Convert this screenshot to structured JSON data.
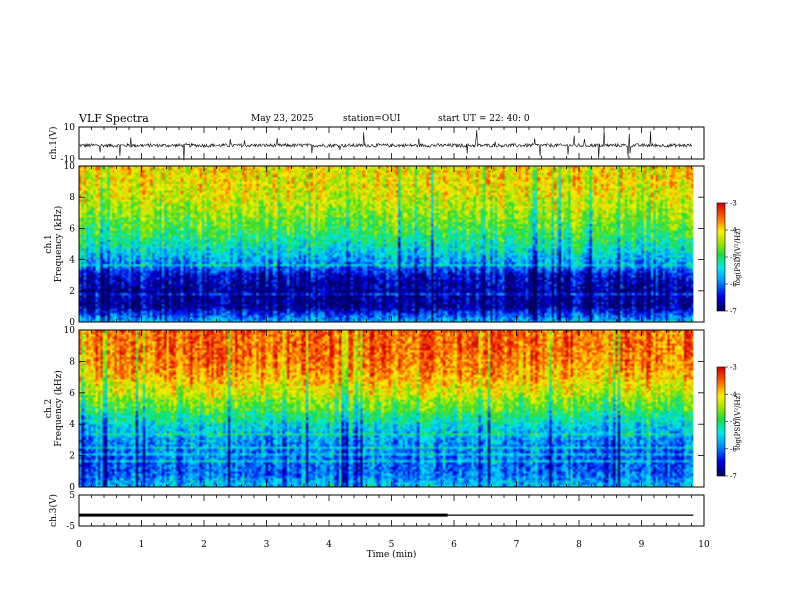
{
  "header": {
    "title": "VLF Spectra",
    "date": "May 23, 2025",
    "station": "station=OUI",
    "start": "start UT =   22: 40: 0"
  },
  "chart_data": [
    {
      "type": "line",
      "panel": "ch1-waveform",
      "ylabel": "ch.1(V)",
      "ylim": [
        -10,
        10
      ],
      "yticks": [
        "10",
        "-10"
      ],
      "xlim": [
        0,
        10
      ],
      "baseline_v": -1.5,
      "color": "#000000"
    },
    {
      "type": "heatmap",
      "panel": "ch1-spectrogram",
      "ylabel": "ch.1\nFrequency (kHz)",
      "ylim": [
        0,
        10
      ],
      "yticks": [
        "0",
        "2",
        "4",
        "6",
        "8",
        "10"
      ],
      "xlim": [
        0,
        9.83
      ],
      "colorbar": {
        "label": "log(PSD)(V²/Hz)",
        "range": [
          -7,
          -3
        ],
        "ticks": [
          "-3",
          "-4",
          "-5",
          "-6",
          "-7"
        ]
      },
      "profile_khz": [
        0,
        1,
        2,
        3,
        3.5,
        4,
        5,
        6,
        7,
        8,
        9,
        10
      ],
      "profile_level": [
        0.35,
        0.05,
        0.06,
        0.12,
        0.25,
        0.32,
        0.45,
        0.55,
        0.62,
        0.7,
        0.74,
        0.74
      ]
    },
    {
      "type": "heatmap",
      "panel": "ch2-spectrogram",
      "ylabel": "ch.2\nFrequency (kHz)",
      "ylim": [
        0,
        10
      ],
      "yticks": [
        "0",
        "2",
        "4",
        "6",
        "8",
        "10"
      ],
      "xlim": [
        0,
        9.83
      ],
      "colorbar": {
        "label": "log(PSD)(V²/Hz)",
        "range": [
          -7,
          -3
        ],
        "ticks": [
          "-3",
          "-4",
          "-5",
          "-6",
          "-7"
        ]
      },
      "profile_khz": [
        0,
        1,
        2,
        3,
        4,
        5,
        6,
        7,
        8,
        9,
        10
      ],
      "profile_level": [
        0.35,
        0.24,
        0.25,
        0.3,
        0.4,
        0.55,
        0.68,
        0.8,
        0.86,
        0.88,
        0.88
      ]
    },
    {
      "type": "line",
      "panel": "ch3-waveform",
      "ylabel": "ch.3(V)",
      "ylim": [
        -5,
        5
      ],
      "yticks": [
        "5",
        "-5"
      ],
      "xlim": [
        0,
        10
      ],
      "xlabel": "Time (min)",
      "xticks": [
        "0",
        "1",
        "2",
        "3",
        "4",
        "5",
        "6",
        "7",
        "8",
        "9",
        "10"
      ],
      "segments": [
        {
          "x": [
            0,
            5.9
          ],
          "y": -1.5,
          "weight": "thick"
        },
        {
          "x": [
            5.9,
            9.83
          ],
          "y": -1.5,
          "weight": "thin"
        }
      ],
      "color": "#000000"
    }
  ]
}
